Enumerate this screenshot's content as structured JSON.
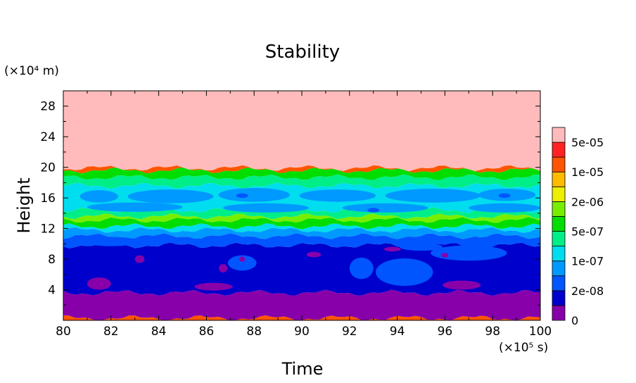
{
  "chart_data": {
    "type": "heatmap",
    "title": "Stability",
    "xlabel": "Time",
    "ylabel": "Height",
    "x_unit_label": "(×10⁵ s)",
    "y_unit_label": "(×10⁴ m)",
    "xlim": [
      80,
      100
    ],
    "ylim": [
      0,
      30
    ],
    "xticks": [
      80,
      82,
      84,
      86,
      88,
      90,
      92,
      94,
      96,
      98,
      100
    ],
    "yticks": [
      4,
      8,
      12,
      16,
      20,
      24,
      28
    ],
    "colorbar": {
      "colors": [
        "#8800aa",
        "#0000cc",
        "#0055ff",
        "#0099ff",
        "#00ddee",
        "#00ee88",
        "#00dd00",
        "#77ee00",
        "#eeee00",
        "#ffbb00",
        "#ff5500",
        "#ff2222",
        "#ffbbbb"
      ],
      "labels": [
        "0",
        "2e-08",
        "1e-07",
        "5e-07",
        "2e-06",
        "1e-05",
        "5e-05"
      ]
    },
    "layers": [
      {
        "from": 0.0,
        "to": 0.3,
        "color": "#ff5500"
      },
      {
        "from": 0.3,
        "to": 3.6,
        "color": "#8800aa"
      },
      {
        "from": 3.6,
        "to": 9.8,
        "color": "#0000cc"
      },
      {
        "from": 9.8,
        "to": 11.0,
        "color": "#0055ff"
      },
      {
        "from": 11.0,
        "to": 11.8,
        "color": "#0099ff"
      },
      {
        "from": 11.8,
        "to": 12.3,
        "color": "#00ddee"
      },
      {
        "from": 12.3,
        "to": 13.1,
        "color": "#00dd00"
      },
      {
        "from": 13.1,
        "to": 13.6,
        "color": "#77ee00"
      },
      {
        "from": 13.6,
        "to": 14.4,
        "color": "#00ee88"
      },
      {
        "from": 14.4,
        "to": 17.6,
        "color": "#00ddee"
      },
      {
        "from": 17.6,
        "to": 18.7,
        "color": "#00ee88"
      },
      {
        "from": 18.7,
        "to": 19.6,
        "color": "#00dd00"
      },
      {
        "from": 19.6,
        "to": 19.9,
        "color": "#ff5500"
      },
      {
        "from": 19.9,
        "to": 30.0,
        "color": "#ffbbbb"
      }
    ],
    "blobs": [
      {
        "x": 81.5,
        "y": 16.2,
        "rx": 0.8,
        "ry": 0.8,
        "color": "#0099ff"
      },
      {
        "x": 84.5,
        "y": 16.2,
        "rx": 1.8,
        "ry": 0.9,
        "color": "#0099ff"
      },
      {
        "x": 88.0,
        "y": 16.4,
        "rx": 1.5,
        "ry": 0.9,
        "color": "#0099ff"
      },
      {
        "x": 91.5,
        "y": 16.3,
        "rx": 1.6,
        "ry": 0.8,
        "color": "#0099ff"
      },
      {
        "x": 95.5,
        "y": 16.3,
        "rx": 2.0,
        "ry": 0.9,
        "color": "#0099ff"
      },
      {
        "x": 98.6,
        "y": 16.4,
        "rx": 1.2,
        "ry": 0.8,
        "color": "#0099ff"
      },
      {
        "x": 83.0,
        "y": 14.8,
        "rx": 2.0,
        "ry": 0.6,
        "color": "#0099ff"
      },
      {
        "x": 88.5,
        "y": 14.7,
        "rx": 1.8,
        "ry": 0.6,
        "color": "#0099ff"
      },
      {
        "x": 93.5,
        "y": 14.7,
        "rx": 1.8,
        "ry": 0.6,
        "color": "#0099ff"
      },
      {
        "x": 98.5,
        "y": 14.7,
        "rx": 1.5,
        "ry": 0.6,
        "color": "#0099ff"
      },
      {
        "x": 87.5,
        "y": 16.3,
        "rx": 0.25,
        "ry": 0.3,
        "color": "#0055ff"
      },
      {
        "x": 93.0,
        "y": 14.4,
        "rx": 0.25,
        "ry": 0.3,
        "color": "#0055ff"
      },
      {
        "x": 98.5,
        "y": 16.3,
        "rx": 0.25,
        "ry": 0.3,
        "color": "#0055ff"
      },
      {
        "x": 82.0,
        "y": 10.3,
        "rx": 1.2,
        "ry": 0.6,
        "color": "#0055ff"
      },
      {
        "x": 97.0,
        "y": 8.8,
        "rx": 1.6,
        "ry": 1.0,
        "color": "#0055ff"
      },
      {
        "x": 94.3,
        "y": 6.3,
        "rx": 1.2,
        "ry": 1.8,
        "color": "#0055ff"
      },
      {
        "x": 92.5,
        "y": 6.8,
        "rx": 0.5,
        "ry": 1.4,
        "color": "#0055ff"
      },
      {
        "x": 95.0,
        "y": 9.6,
        "rx": 0.9,
        "ry": 0.5,
        "color": "#0055ff"
      },
      {
        "x": 87.5,
        "y": 7.5,
        "rx": 0.6,
        "ry": 1.0,
        "color": "#0055ff"
      },
      {
        "x": 83.2,
        "y": 8.0,
        "rx": 0.2,
        "ry": 0.5,
        "color": "#8800aa"
      },
      {
        "x": 86.7,
        "y": 6.8,
        "rx": 0.18,
        "ry": 0.55,
        "color": "#8800aa"
      },
      {
        "x": 87.5,
        "y": 8.0,
        "rx": 0.12,
        "ry": 0.35,
        "color": "#8800aa"
      },
      {
        "x": 90.5,
        "y": 8.6,
        "rx": 0.3,
        "ry": 0.35,
        "color": "#8800aa"
      },
      {
        "x": 93.8,
        "y": 9.3,
        "rx": 0.35,
        "ry": 0.3,
        "color": "#8800aa"
      },
      {
        "x": 96.0,
        "y": 8.5,
        "rx": 0.15,
        "ry": 0.3,
        "color": "#8800aa"
      },
      {
        "x": 81.5,
        "y": 4.8,
        "rx": 0.5,
        "ry": 0.8,
        "color": "#8800aa"
      },
      {
        "x": 86.3,
        "y": 4.4,
        "rx": 0.8,
        "ry": 0.5,
        "color": "#8800aa"
      },
      {
        "x": 96.7,
        "y": 4.6,
        "rx": 0.8,
        "ry": 0.6,
        "color": "#8800aa"
      }
    ]
  }
}
